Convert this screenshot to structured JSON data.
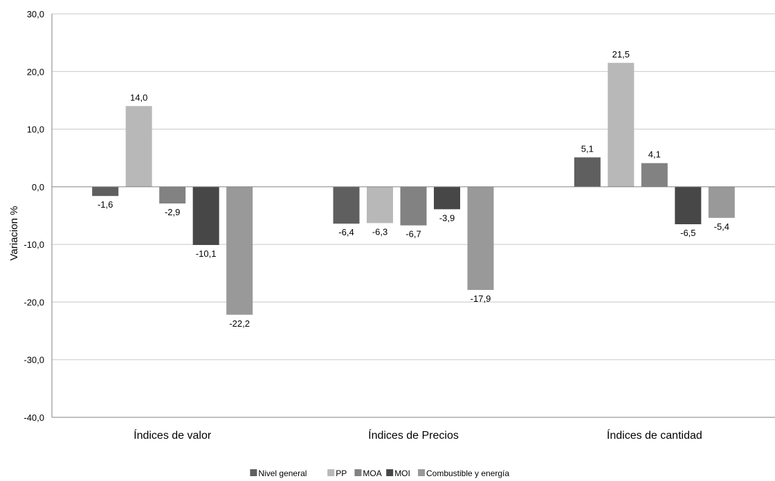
{
  "chart_data": {
    "type": "bar",
    "categories": [
      "Índices de valor",
      "Índices de Precios",
      "Índices de cantidad"
    ],
    "series": [
      {
        "name": "Nivel general",
        "color": "#5f5f5f",
        "values": [
          -1.6,
          -6.4,
          5.1
        ]
      },
      {
        "name": "PP",
        "color": "#b8b8b8",
        "values": [
          14.0,
          -6.3,
          21.5
        ]
      },
      {
        "name": "MOA",
        "color": "#828282",
        "values": [
          -2.9,
          -6.7,
          4.1
        ]
      },
      {
        "name": "MOI",
        "color": "#474747",
        "values": [
          -10.1,
          -3.9,
          -6.5
        ]
      },
      {
        "name": "Combustible y energía",
        "color": "#999999",
        "values": [
          -22.2,
          -17.9,
          -5.4
        ]
      }
    ],
    "data_labels": [
      [
        "-1,6",
        "14,0",
        "-2,9",
        "-10,1",
        "-22,2"
      ],
      [
        "-6,4",
        "-6,3",
        "-6,7",
        "-3,9",
        "-17,9"
      ],
      [
        "5,1",
        "21,5",
        "4,1",
        "-6,5",
        "-5,4"
      ]
    ],
    "ylabel": "Variacion %",
    "xlabel": "",
    "ylim": [
      -40,
      30
    ],
    "yticks": [
      30,
      20,
      10,
      0,
      -10,
      -20,
      -30,
      -40
    ],
    "ytick_labels": [
      "30,0",
      "20,0",
      "10,0",
      "0,0",
      "-10,0",
      "-20,0",
      "-30,0",
      "-40,0"
    ],
    "grid": true,
    "legend": "bottom-center",
    "gridline_color": "#c8c8c8",
    "axis_color": "#808080"
  }
}
